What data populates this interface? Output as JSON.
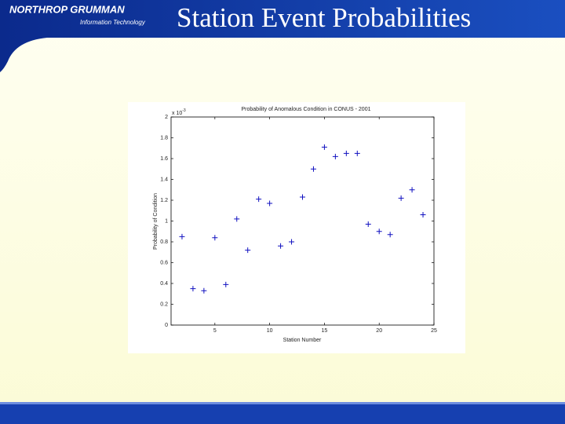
{
  "slide": {
    "logo": {
      "name": "NORTHROP GRUMMAN",
      "division": "Information Technology"
    },
    "title": "Station Event Probabilities"
  },
  "chart_data": {
    "type": "scatter",
    "title": "Probability of Anomalous Condition in CONUS - 2001",
    "x_label": "Station Number",
    "y_label": "Probability of Condition",
    "y_multiplier": {
      "base": "x 10",
      "exponent": "-3"
    },
    "color": "#1010c0",
    "marker": "+",
    "x": [
      2,
      3,
      4,
      5,
      6,
      7,
      8,
      9,
      10,
      11,
      12,
      13,
      14,
      15,
      16,
      17,
      18,
      19,
      20,
      21,
      22,
      23,
      24
    ],
    "values": [
      0.85,
      0.35,
      0.33,
      0.84,
      0.39,
      1.02,
      0.72,
      1.21,
      1.17,
      0.76,
      0.8,
      1.23,
      1.5,
      1.71,
      1.62,
      1.65,
      1.65,
      0.97,
      0.9,
      0.87,
      1.22,
      1.3,
      1.06
    ],
    "xlim": [
      1,
      25
    ],
    "xticks": [
      5,
      10,
      15,
      20,
      25
    ],
    "ylim": [
      0,
      2
    ],
    "yticks": [
      0,
      0.2,
      0.4,
      0.6,
      0.8,
      1,
      1.2,
      1.4,
      1.6,
      1.8,
      2
    ]
  }
}
